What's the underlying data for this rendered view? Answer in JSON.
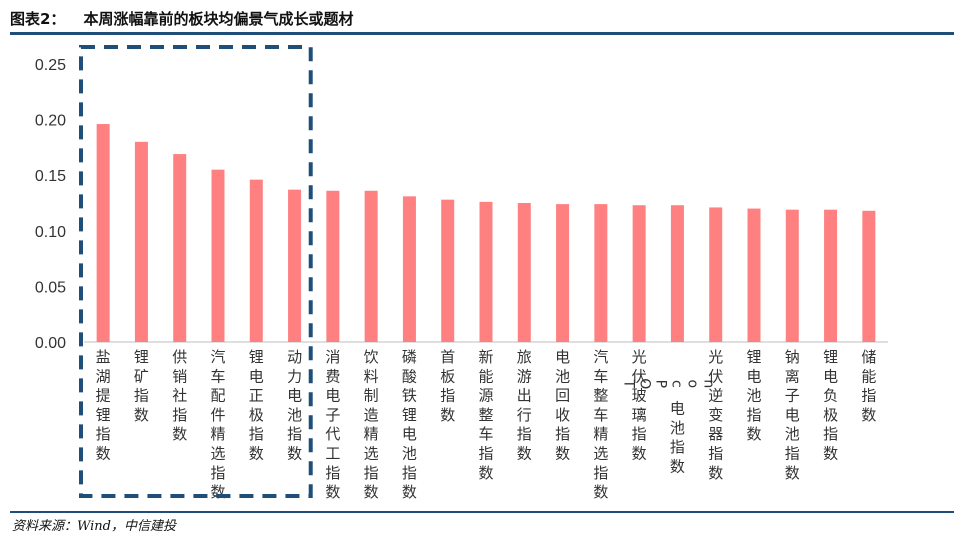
{
  "figure": {
    "label": "图表2：",
    "title": "本周涨幅靠前的板块均偏景气成长或题材",
    "source": "资料来源：Wind，中信建投"
  },
  "colors": {
    "bar": "#ff8080",
    "accent": "#1f4e79",
    "axis": "#bfbfbf"
  },
  "chart_data": {
    "type": "bar",
    "categories": [
      "盐湖提锂指数",
      "锂矿指数",
      "供销社指数",
      "汽车配件精选指数",
      "锂电正极指数",
      "动力电池指数",
      "消费电子代工指数",
      "饮料制造精选指数",
      "磷酸铁锂电池指数",
      "首板指数",
      "新能源整车指数",
      "旅游出行指数",
      "电池回收指数",
      "汽车整车精选指数",
      "光伏玻璃指数",
      "TOPcon电池指数",
      "光伏逆变器指数",
      "锂电池指数",
      "钠离子电池指数",
      "锂电负极指数",
      "储能指数"
    ],
    "values": [
      0.196,
      0.18,
      0.169,
      0.155,
      0.146,
      0.137,
      0.136,
      0.136,
      0.131,
      0.128,
      0.126,
      0.125,
      0.124,
      0.124,
      0.123,
      0.123,
      0.121,
      0.12,
      0.119,
      0.119,
      0.118
    ],
    "yticks": [
      "0.00",
      "0.05",
      "0.10",
      "0.15",
      "0.20",
      "0.25"
    ],
    "ylim": [
      0,
      0.25
    ],
    "grid": false,
    "highlight": {
      "from": 0,
      "to": 5,
      "style": "dashed-box"
    }
  }
}
